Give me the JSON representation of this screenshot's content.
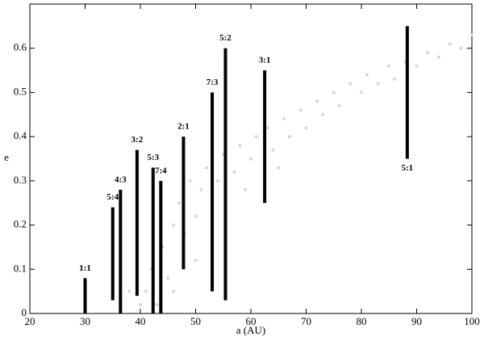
{
  "chart_data": {
    "type": "scatter",
    "xlabel": "a (AU)",
    "ylabel": "e",
    "xlim": [
      20,
      100
    ],
    "ylim": [
      0,
      0.7
    ],
    "xticks": [
      20,
      30,
      40,
      50,
      60,
      70,
      80,
      90,
      100
    ],
    "yticks": [
      0,
      0.1,
      0.2,
      0.3,
      0.4,
      0.5,
      0.6
    ],
    "background": {
      "color": "#d6d6d6",
      "x": [
        40,
        41,
        42,
        44,
        45,
        46,
        47,
        48,
        49,
        50,
        51,
        52,
        54,
        55,
        57,
        58,
        60,
        61,
        63,
        64,
        66,
        67,
        69,
        70,
        72,
        73,
        75,
        76,
        78,
        80,
        81,
        83,
        85,
        86,
        88,
        90,
        92,
        94,
        96,
        98,
        100,
        43,
        46,
        50,
        53,
        59,
        65,
        35,
        38
      ],
      "y": [
        0.02,
        0.05,
        0.1,
        0.15,
        0.08,
        0.2,
        0.25,
        0.18,
        0.3,
        0.22,
        0.28,
        0.33,
        0.3,
        0.36,
        0.32,
        0.38,
        0.35,
        0.4,
        0.42,
        0.37,
        0.44,
        0.4,
        0.46,
        0.42,
        0.48,
        0.45,
        0.5,
        0.47,
        0.52,
        0.5,
        0.54,
        0.52,
        0.56,
        0.53,
        0.57,
        0.56,
        0.59,
        0.58,
        0.61,
        0.6,
        0.63,
        0.02,
        0.05,
        0.12,
        0.2,
        0.28,
        0.33,
        0.12,
        0.05
      ]
    },
    "resonances": {
      "color": "#000000",
      "labels": [
        "1:1",
        "5:4",
        "4:3",
        "3:2",
        "5:3",
        "7:4",
        "2:1",
        "7:3",
        "5:2",
        "3:1",
        "5:1"
      ],
      "x": [
        30,
        35,
        36.4,
        39.4,
        42.3,
        43.7,
        47.8,
        53,
        55.4,
        62.5,
        88.3
      ],
      "low": [
        0,
        0.03,
        0,
        0.04,
        0,
        0,
        0.1,
        0.05,
        0.03,
        0.25,
        0.35
      ],
      "high": [
        0.08,
        0.24,
        0.28,
        0.37,
        0.33,
        0.3,
        0.4,
        0.5,
        0.6,
        0.55,
        0.65
      ]
    }
  }
}
